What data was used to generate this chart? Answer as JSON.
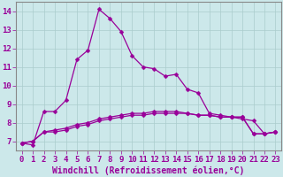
{
  "xlabel": "Windchill (Refroidissement éolien,°C)",
  "ylabel": "",
  "background_color": "#cce8ea",
  "line_color": "#990099",
  "grid_color": "#aacccc",
  "spine_color": "#888888",
  "xlim": [
    -0.5,
    23.5
  ],
  "ylim": [
    6.5,
    14.5
  ],
  "yticks": [
    7,
    8,
    9,
    10,
    11,
    12,
    13,
    14
  ],
  "xticks": [
    0,
    1,
    2,
    3,
    4,
    5,
    6,
    7,
    8,
    9,
    10,
    11,
    12,
    13,
    14,
    15,
    16,
    17,
    18,
    19,
    20,
    21,
    22,
    23
  ],
  "series": [
    [
      6.9,
      6.8,
      8.6,
      8.6,
      9.2,
      11.4,
      11.9,
      14.1,
      13.6,
      12.9,
      11.6,
      11.0,
      10.9,
      10.5,
      10.6,
      9.8,
      9.6,
      8.5,
      8.4,
      8.3,
      8.2,
      8.1,
      7.4,
      7.5
    ],
    [
      6.9,
      7.0,
      7.5,
      7.5,
      7.6,
      7.8,
      7.9,
      8.1,
      8.2,
      8.3,
      8.4,
      8.4,
      8.5,
      8.5,
      8.5,
      8.5,
      8.4,
      8.4,
      8.3,
      8.3,
      8.3,
      7.4,
      7.4,
      7.5
    ],
    [
      6.9,
      7.0,
      7.5,
      7.6,
      7.7,
      7.9,
      8.0,
      8.2,
      8.3,
      8.4,
      8.5,
      8.5,
      8.6,
      8.6,
      8.6,
      8.5,
      8.4,
      8.4,
      8.3,
      8.3,
      8.3,
      7.4,
      7.4,
      7.5
    ]
  ],
  "tick_fontsize": 6.5,
  "xlabel_fontsize": 7.0,
  "marker_size": 2.5
}
